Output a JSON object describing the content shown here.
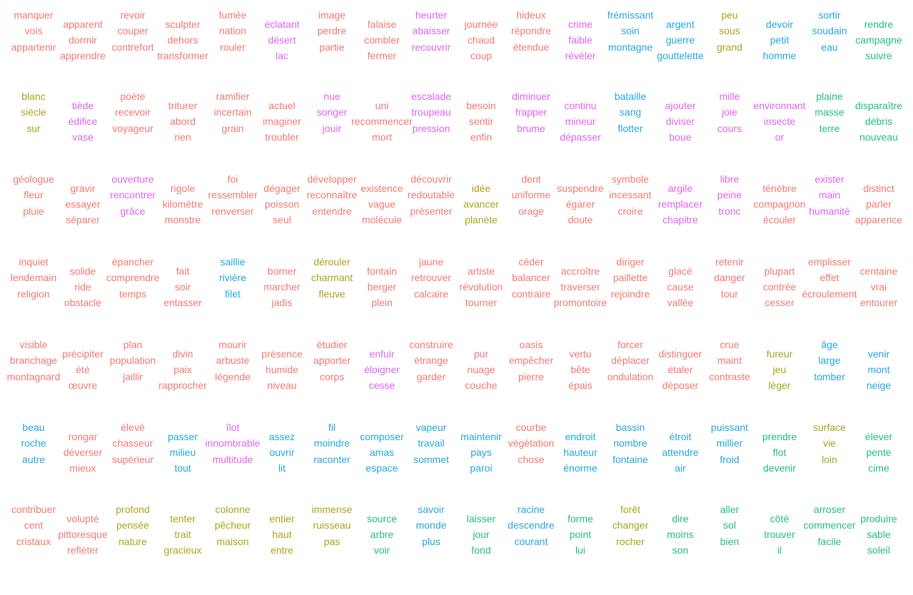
{
  "palette": {
    "salmon": "#f0786f",
    "olive": "#a6a619",
    "green": "#21ba8a",
    "blue": "#22a6dc",
    "magenta": "#df62ee"
  },
  "groups": [
    {
      "color": "salmon",
      "words": [
        "manquer",
        "vois",
        "appartenir"
      ]
    },
    {
      "color": "salmon",
      "words": [
        "apparent",
        "dormir",
        "apprendre"
      ]
    },
    {
      "color": "salmon",
      "words": [
        "revoir",
        "couper",
        "contrefort"
      ]
    },
    {
      "color": "salmon",
      "words": [
        "sculpter",
        "dehors",
        "transformer"
      ]
    },
    {
      "color": "salmon",
      "words": [
        "fumée",
        "nation",
        "rouler"
      ]
    },
    {
      "color": "magenta",
      "words": [
        "éclatant",
        "désert",
        "lac"
      ]
    },
    {
      "color": "salmon",
      "words": [
        "image",
        "perdre",
        "partie"
      ]
    },
    {
      "color": "salmon",
      "words": [
        "falaise",
        "combler",
        "fermer"
      ]
    },
    {
      "color": "magenta",
      "words": [
        "heurter",
        "abaisser",
        "recouvrir"
      ]
    },
    {
      "color": "salmon",
      "words": [
        "journée",
        "chaud",
        "coup"
      ]
    },
    {
      "color": "salmon",
      "words": [
        "hideux",
        "répondre",
        "étendue"
      ]
    },
    {
      "color": "magenta",
      "words": [
        "crime",
        "faible",
        "révéler"
      ]
    },
    {
      "color": "blue",
      "words": [
        "frémissant",
        "soin",
        "montagne"
      ]
    },
    {
      "color": "blue",
      "words": [
        "argent",
        "guerre",
        "gouttelette"
      ]
    },
    {
      "color": "olive",
      "words": [
        "peu",
        "sous",
        "grand"
      ]
    },
    {
      "color": "blue",
      "words": [
        "devoir",
        "petit",
        "homme"
      ]
    },
    {
      "color": "blue",
      "words": [
        "sortir",
        "soudain",
        "eau"
      ]
    },
    {
      "color": "green",
      "words": [
        "rendre",
        "campagne",
        "suivre"
      ]
    },
    {
      "color": "olive",
      "words": [
        "blanc",
        "siècle",
        "sur"
      ]
    },
    {
      "color": "magenta",
      "words": [
        "tiède",
        "édifice",
        "vase"
      ]
    },
    {
      "color": "salmon",
      "words": [
        "poète",
        "recevoir",
        "voyageur"
      ]
    },
    {
      "color": "salmon",
      "words": [
        "triturer",
        "abord",
        "rien"
      ]
    },
    {
      "color": "salmon",
      "words": [
        "ramifier",
        "incertain",
        "grain"
      ]
    },
    {
      "color": "salmon",
      "words": [
        "actuel",
        "imaginer",
        "troubler"
      ]
    },
    {
      "color": "magenta",
      "words": [
        "nue",
        "songer",
        "jouir"
      ]
    },
    {
      "color": "salmon",
      "words": [
        "uni",
        "recommencer",
        "mort"
      ]
    },
    {
      "color": "magenta",
      "words": [
        "escalade",
        "troupeau",
        "pression"
      ]
    },
    {
      "color": "salmon",
      "words": [
        "besoin",
        "sentir",
        "enfin"
      ]
    },
    {
      "color": "magenta",
      "words": [
        "diminuer",
        "frapper",
        "brume"
      ]
    },
    {
      "color": "magenta",
      "words": [
        "continu",
        "mineur",
        "dépasser"
      ]
    },
    {
      "color": "blue",
      "words": [
        "bataille",
        "sang",
        "flotter"
      ]
    },
    {
      "color": "magenta",
      "words": [
        "ajouter",
        "diviser",
        "boue"
      ]
    },
    {
      "color": "magenta",
      "words": [
        "mille",
        "joie",
        "cours"
      ]
    },
    {
      "color": "magenta",
      "words": [
        "environnant",
        "insecte",
        "or"
      ]
    },
    {
      "color": "green",
      "words": [
        "plaine",
        "masse",
        "terre"
      ]
    },
    {
      "color": "green",
      "words": [
        "disparaître",
        "débris",
        "nouveau"
      ]
    },
    {
      "color": "salmon",
      "words": [
        "géologue",
        "fleur",
        "pluie"
      ]
    },
    {
      "color": "salmon",
      "words": [
        "gravir",
        "essayer",
        "séparer"
      ]
    },
    {
      "color": "magenta",
      "words": [
        "ouverture",
        "rencontrer",
        "grâce"
      ]
    },
    {
      "color": "salmon",
      "words": [
        "rigole",
        "kilomètre",
        "monstre"
      ]
    },
    {
      "color": "salmon",
      "words": [
        "foi",
        "ressembler",
        "renverser"
      ]
    },
    {
      "color": "salmon",
      "words": [
        "dégager",
        "poisson",
        "seul"
      ]
    },
    {
      "color": "salmon",
      "words": [
        "développer",
        "reconnaître",
        "entendre"
      ]
    },
    {
      "color": "salmon",
      "words": [
        "existence",
        "vague",
        "molécule"
      ]
    },
    {
      "color": "salmon",
      "words": [
        "découvrir",
        "redoutable",
        "présenter"
      ]
    },
    {
      "color": "olive",
      "words": [
        "idée",
        "avancer",
        "planète"
      ]
    },
    {
      "color": "salmon",
      "words": [
        "dent",
        "uniforme",
        "orage"
      ]
    },
    {
      "color": "salmon",
      "words": [
        "suspendre",
        "égarer",
        "doute"
      ]
    },
    {
      "color": "salmon",
      "words": [
        "symbole",
        "incessant",
        "croire"
      ]
    },
    {
      "color": "magenta",
      "words": [
        "argile",
        "remplacer",
        "chapitre"
      ]
    },
    {
      "color": "magenta",
      "words": [
        "libre",
        "peine",
        "tronc"
      ]
    },
    {
      "color": "salmon",
      "words": [
        "ténèbre",
        "compagnon",
        "écouler"
      ]
    },
    {
      "color": "magenta",
      "words": [
        "exister",
        "main",
        "humanité"
      ]
    },
    {
      "color": "salmon",
      "words": [
        "distinct",
        "parler",
        "apparence"
      ]
    },
    {
      "color": "salmon",
      "words": [
        "inquiet",
        "lendemain",
        "religion"
      ]
    },
    {
      "color": "salmon",
      "words": [
        "solide",
        "ride",
        "obstacle"
      ]
    },
    {
      "color": "salmon",
      "words": [
        "épancher",
        "comprendre",
        "temps"
      ]
    },
    {
      "color": "salmon",
      "words": [
        "fait",
        "soir",
        "entasser"
      ]
    },
    {
      "color": "blue",
      "words": [
        "saillie",
        "rivière",
        "filet"
      ]
    },
    {
      "color": "salmon",
      "words": [
        "borner",
        "marcher",
        "jadis"
      ]
    },
    {
      "color": "olive",
      "words": [
        "dérouler",
        "charmant",
        "fleuve"
      ]
    },
    {
      "color": "salmon",
      "words": [
        "fontain",
        "berger",
        "plein"
      ]
    },
    {
      "color": "salmon",
      "words": [
        "jaune",
        "retrouver",
        "calcaire"
      ]
    },
    {
      "color": "salmon",
      "words": [
        "artiste",
        "révolution",
        "tourner"
      ]
    },
    {
      "color": "salmon",
      "words": [
        "céder",
        "balancer",
        "contraire"
      ]
    },
    {
      "color": "salmon",
      "words": [
        "accroître",
        "traverser",
        "promontoire"
      ]
    },
    {
      "color": "salmon",
      "words": [
        "diriger",
        "paillette",
        "rejoindre"
      ]
    },
    {
      "color": "salmon",
      "words": [
        "glacé",
        "cause",
        "vallée"
      ]
    },
    {
      "color": "salmon",
      "words": [
        "retenir",
        "danger",
        "tour"
      ]
    },
    {
      "color": "salmon",
      "words": [
        "plupart",
        "contrée",
        "cesser"
      ]
    },
    {
      "color": "salmon",
      "words": [
        "emplisser",
        "effet",
        "écroulement"
      ]
    },
    {
      "color": "salmon",
      "words": [
        "centaine",
        "vrai",
        "entourer"
      ]
    },
    {
      "color": "salmon",
      "words": [
        "visible",
        "branchage",
        "montagnard"
      ]
    },
    {
      "color": "salmon",
      "words": [
        "précipiter",
        "été",
        "œuvre"
      ]
    },
    {
      "color": "salmon",
      "words": [
        "plan",
        "population",
        "jaillir"
      ]
    },
    {
      "color": "salmon",
      "words": [
        "divin",
        "paix",
        "rapprocher"
      ]
    },
    {
      "color": "salmon",
      "words": [
        "mourir",
        "arbuste",
        "légende"
      ]
    },
    {
      "color": "salmon",
      "words": [
        "présence",
        "humide",
        "niveau"
      ]
    },
    {
      "color": "salmon",
      "words": [
        "étudier",
        "apporter",
        "corps"
      ]
    },
    {
      "color": "magenta",
      "words": [
        "enfuir",
        "éloigner",
        "cesse"
      ]
    },
    {
      "color": "salmon",
      "words": [
        "construire",
        "étrange",
        "garder"
      ]
    },
    {
      "color": "salmon",
      "words": [
        "pur",
        "nuage",
        "couche"
      ]
    },
    {
      "color": "salmon",
      "words": [
        "oasis",
        "empêcher",
        "pierre"
      ]
    },
    {
      "color": "salmon",
      "words": [
        "vertu",
        "bête",
        "épais"
      ]
    },
    {
      "color": "salmon",
      "words": [
        "forcer",
        "déplacer",
        "ondulation"
      ]
    },
    {
      "color": "salmon",
      "words": [
        "distinguer",
        "étaler",
        "déposer"
      ]
    },
    {
      "color": "salmon",
      "words": [
        "crue",
        "maint",
        "contraste"
      ]
    },
    {
      "color": "olive",
      "words": [
        "fureur",
        "jeu",
        "léger"
      ]
    },
    {
      "color": "blue",
      "words": [
        "âge",
        "large",
        "tomber"
      ]
    },
    {
      "color": "blue",
      "words": [
        "venir",
        "mont",
        "neige"
      ]
    },
    {
      "color": "blue",
      "words": [
        "beau",
        "roche",
        "autre"
      ]
    },
    {
      "color": "salmon",
      "words": [
        "rongar",
        "déverser",
        "mieux"
      ]
    },
    {
      "color": "salmon",
      "words": [
        "élevé",
        "chasseur",
        "supérieur"
      ]
    },
    {
      "color": "blue",
      "words": [
        "passer",
        "milieu",
        "tout"
      ]
    },
    {
      "color": "magenta",
      "words": [
        "îlot",
        "innombrable",
        "multitude"
      ]
    },
    {
      "color": "blue",
      "words": [
        "assez",
        "ouvrir",
        "lit"
      ]
    },
    {
      "color": "blue",
      "words": [
        "fil",
        "moindre",
        "raconter"
      ]
    },
    {
      "color": "blue",
      "words": [
        "composer",
        "amas",
        "espace"
      ]
    },
    {
      "color": "blue",
      "words": [
        "vapeur",
        "travail",
        "sommet"
      ]
    },
    {
      "color": "blue",
      "words": [
        "maintenir",
        "pays",
        "paroi"
      ]
    },
    {
      "color": "salmon",
      "words": [
        "courbe",
        "végétation",
        "chose"
      ]
    },
    {
      "color": "blue",
      "words": [
        "endroit",
        "hauteur",
        "énorme"
      ]
    },
    {
      "color": "blue",
      "words": [
        "bassin",
        "nombre",
        "fontaine"
      ]
    },
    {
      "color": "blue",
      "words": [
        "étroit",
        "attendre",
        "air"
      ]
    },
    {
      "color": "blue",
      "words": [
        "puissant",
        "millier",
        "froid"
      ]
    },
    {
      "color": "green",
      "words": [
        "prendre",
        "flot",
        "devenir"
      ]
    },
    {
      "color": "olive",
      "words": [
        "surface",
        "vie",
        "loin"
      ]
    },
    {
      "color": "green",
      "words": [
        "élever",
        "pente",
        "cime"
      ]
    },
    {
      "color": "salmon",
      "words": [
        "contribuer",
        "cent",
        "cristaux"
      ]
    },
    {
      "color": "salmon",
      "words": [
        "volupté",
        "pittoresque",
        "refléter"
      ]
    },
    {
      "color": "olive",
      "words": [
        "profond",
        "pensée",
        "nature"
      ]
    },
    {
      "color": "olive",
      "words": [
        "tenter",
        "trait",
        "gracieux"
      ]
    },
    {
      "color": "olive",
      "words": [
        "colonne",
        "pêcheur",
        "maison"
      ]
    },
    {
      "color": "olive",
      "words": [
        "entier",
        "haut",
        "entre"
      ]
    },
    {
      "color": "olive",
      "words": [
        "immense",
        "ruisseau",
        "pas"
      ]
    },
    {
      "color": "green",
      "words": [
        "source",
        "arbre",
        "voir"
      ]
    },
    {
      "color": "blue",
      "words": [
        "savoir",
        "monde",
        "plus"
      ]
    },
    {
      "color": "green",
      "words": [
        "laisser",
        "jour",
        "fond"
      ]
    },
    {
      "color": "blue",
      "words": [
        "racine",
        "descendre",
        "courant"
      ]
    },
    {
      "color": "green",
      "words": [
        "forme",
        "point",
        "lui"
      ]
    },
    {
      "color": "olive",
      "words": [
        "forêt",
        "changer",
        "rocher"
      ]
    },
    {
      "color": "green",
      "words": [
        "dire",
        "moins",
        "son"
      ]
    },
    {
      "color": "green",
      "words": [
        "aller",
        "sol",
        "bien"
      ]
    },
    {
      "color": "green",
      "words": [
        "côté",
        "trouver",
        "il"
      ]
    },
    {
      "color": "green",
      "words": [
        "arroser",
        "commencer",
        "facile"
      ]
    },
    {
      "color": "green",
      "words": [
        "produire",
        "sable",
        "soleil"
      ]
    }
  ]
}
